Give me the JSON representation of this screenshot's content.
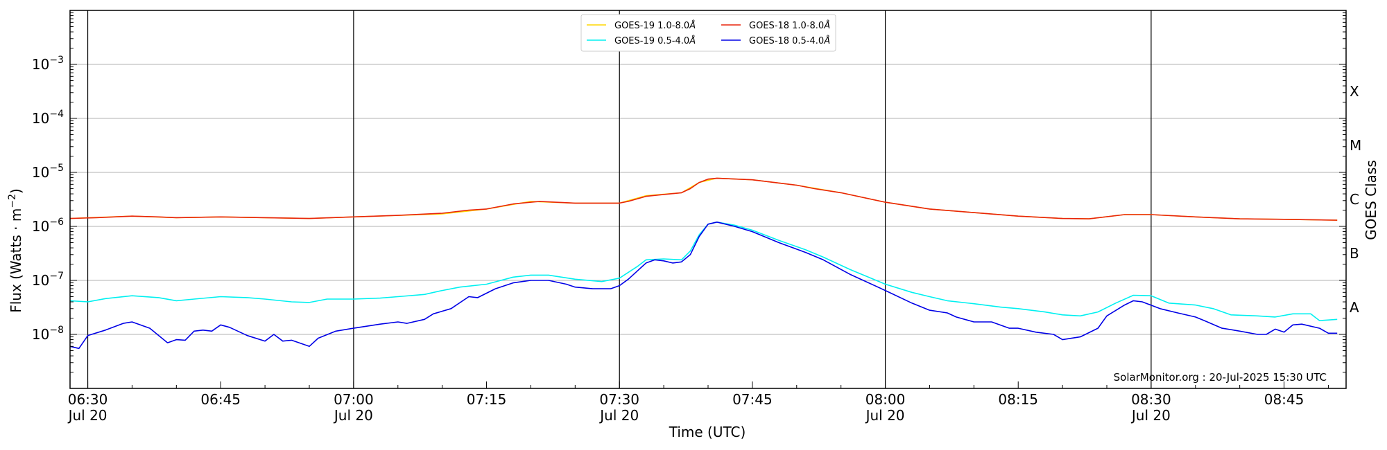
{
  "chart_data": {
    "type": "line",
    "xlabel": "Time (UTC)",
    "ylabel": "Flux (Watts · m",
    "ylabel_sup": "−2",
    "ylabel_close": ")",
    "y_scale": "log",
    "ylim": [
      1e-09,
      0.01
    ],
    "xlim": [
      "2025-07-20 06:28",
      "2025-07-20 08:52"
    ],
    "grid": "horizontal at each decade; vertical lines at half-hours",
    "y_ticks": [
      {
        "value": 1e-08,
        "base": "10",
        "exp": "−8"
      },
      {
        "value": 1e-07,
        "base": "10",
        "exp": "−7"
      },
      {
        "value": 1e-06,
        "base": "10",
        "exp": "−6"
      },
      {
        "value": 1e-05,
        "base": "10",
        "exp": "−5"
      },
      {
        "value": 0.0001,
        "base": "10",
        "exp": "−4"
      },
      {
        "value": 0.001,
        "base": "10",
        "exp": "−3"
      }
    ],
    "x_ticks": [
      {
        "time": "06:30",
        "line1": "06:30",
        "line2": "Jul 20"
      },
      {
        "time": "06:45",
        "line1": "06:45",
        "line2": ""
      },
      {
        "time": "07:00",
        "line1": "07:00",
        "line2": "Jul 20"
      },
      {
        "time": "07:15",
        "line1": "07:15",
        "line2": ""
      },
      {
        "time": "07:30",
        "line1": "07:30",
        "line2": "Jul 20"
      },
      {
        "time": "07:45",
        "line1": "07:45",
        "line2": ""
      },
      {
        "time": "08:00",
        "line1": "08:00",
        "line2": "Jul 20"
      },
      {
        "time": "08:15",
        "line1": "08:15",
        "line2": ""
      },
      {
        "time": "08:30",
        "line1": "08:30",
        "line2": "Jul 20"
      },
      {
        "time": "08:45",
        "line1": "08:45",
        "line2": ""
      }
    ],
    "vertical_lines": [
      "06:30",
      "07:00",
      "07:30",
      "08:00",
      "08:30"
    ],
    "right_axis": {
      "label": "GOES Class",
      "classes": [
        {
          "name": "A",
          "center": 3.16e-08
        },
        {
          "name": "B",
          "center": 3.16e-07
        },
        {
          "name": "C",
          "center": 3.16e-06
        },
        {
          "name": "M",
          "center": 3.16e-05
        },
        {
          "name": "X",
          "center": 0.000316
        }
      ]
    },
    "legend_position": "top-center",
    "credit": "SolarMonitor.org : 20-Jul-2025 15:30 UTC",
    "series": [
      {
        "name": "GOES-19 1.0-8.0",
        "color": "#ffd700",
        "points": [
          [
            "06:28",
            1.4e-06
          ],
          [
            "06:35",
            1.55e-06
          ],
          [
            "06:40",
            1.45e-06
          ],
          [
            "06:45",
            1.5e-06
          ],
          [
            "06:55",
            1.4e-06
          ],
          [
            "07:00",
            1.5e-06
          ],
          [
            "07:10",
            1.7e-06
          ],
          [
            "07:15",
            2.1e-06
          ],
          [
            "07:20",
            2.9e-06
          ],
          [
            "07:25",
            2.7e-06
          ],
          [
            "07:30",
            2.7e-06
          ],
          [
            "07:33",
            3.7e-06
          ],
          [
            "07:37",
            4.2e-06
          ],
          [
            "07:39",
            6.5e-06
          ],
          [
            "07:41",
            7.8e-06
          ],
          [
            "07:45",
            7.3e-06
          ],
          [
            "07:50",
            5.8e-06
          ],
          [
            "07:55",
            4.2e-06
          ],
          [
            "08:00",
            2.8e-06
          ],
          [
            "08:05",
            2.1e-06
          ],
          [
            "08:10",
            1.8e-06
          ],
          [
            "08:15",
            1.55e-06
          ],
          [
            "08:20",
            1.4e-06
          ],
          [
            "08:23",
            1.38e-06
          ],
          [
            "08:27",
            1.65e-06
          ],
          [
            "08:30",
            1.65e-06
          ],
          [
            "08:35",
            1.5e-06
          ],
          [
            "08:40",
            1.38e-06
          ],
          [
            "08:45",
            1.35e-06
          ],
          [
            "08:51",
            1.3e-06
          ]
        ]
      },
      {
        "name": "GOES-18 1.0-8.0",
        "color": "#e8240c",
        "points": [
          [
            "06:28",
            1.4e-06
          ],
          [
            "06:31",
            1.45e-06
          ],
          [
            "06:35",
            1.55e-06
          ],
          [
            "06:38",
            1.5e-06
          ],
          [
            "06:40",
            1.45e-06
          ],
          [
            "06:45",
            1.5e-06
          ],
          [
            "06:50",
            1.45e-06
          ],
          [
            "06:55",
            1.4e-06
          ],
          [
            "07:00",
            1.5e-06
          ],
          [
            "07:05",
            1.6e-06
          ],
          [
            "07:10",
            1.75e-06
          ],
          [
            "07:13",
            2e-06
          ],
          [
            "07:15",
            2.1e-06
          ],
          [
            "07:18",
            2.6e-06
          ],
          [
            "07:21",
            2.9e-06
          ],
          [
            "07:25",
            2.7e-06
          ],
          [
            "07:30",
            2.7e-06
          ],
          [
            "07:31",
            2.9e-06
          ],
          [
            "07:33",
            3.6e-06
          ],
          [
            "07:35",
            3.9e-06
          ],
          [
            "07:37",
            4.2e-06
          ],
          [
            "07:38",
            5e-06
          ],
          [
            "07:39",
            6.5e-06
          ],
          [
            "07:40",
            7.5e-06
          ],
          [
            "07:41",
            7.8e-06
          ],
          [
            "07:45",
            7.3e-06
          ],
          [
            "07:50",
            5.8e-06
          ],
          [
            "07:52",
            5e-06
          ],
          [
            "07:55",
            4.2e-06
          ],
          [
            "08:00",
            2.8e-06
          ],
          [
            "08:05",
            2.1e-06
          ],
          [
            "08:10",
            1.8e-06
          ],
          [
            "08:15",
            1.55e-06
          ],
          [
            "08:20",
            1.4e-06
          ],
          [
            "08:23",
            1.38e-06
          ],
          [
            "08:27",
            1.65e-06
          ],
          [
            "08:30",
            1.65e-06
          ],
          [
            "08:35",
            1.5e-06
          ],
          [
            "08:40",
            1.38e-06
          ],
          [
            "08:45",
            1.35e-06
          ],
          [
            "08:51",
            1.3e-06
          ]
        ]
      },
      {
        "name": "GOES-19 0.5-4.0",
        "color": "#00f0f0",
        "points": [
          [
            "06:28",
            4.2e-08
          ],
          [
            "06:30",
            4e-08
          ],
          [
            "06:32",
            4.6e-08
          ],
          [
            "06:35",
            5.2e-08
          ],
          [
            "06:38",
            4.8e-08
          ],
          [
            "06:40",
            4.2e-08
          ],
          [
            "06:42",
            4.5e-08
          ],
          [
            "06:45",
            5e-08
          ],
          [
            "06:48",
            4.8e-08
          ],
          [
            "06:50",
            4.5e-08
          ],
          [
            "06:53",
            4e-08
          ],
          [
            "06:55",
            3.9e-08
          ],
          [
            "06:57",
            4.5e-08
          ],
          [
            "07:00",
            4.5e-08
          ],
          [
            "07:03",
            4.7e-08
          ],
          [
            "07:05",
            5e-08
          ],
          [
            "07:08",
            5.5e-08
          ],
          [
            "07:10",
            6.5e-08
          ],
          [
            "07:12",
            7.5e-08
          ],
          [
            "07:15",
            8.5e-08
          ],
          [
            "07:18",
            1.15e-07
          ],
          [
            "07:20",
            1.25e-07
          ],
          [
            "07:22",
            1.25e-07
          ],
          [
            "07:25",
            1.05e-07
          ],
          [
            "07:28",
            9.5e-08
          ],
          [
            "07:30",
            1.1e-07
          ],
          [
            "07:32",
            1.8e-07
          ],
          [
            "07:33",
            2.4e-07
          ],
          [
            "07:35",
            2.5e-07
          ],
          [
            "07:37",
            2.4e-07
          ],
          [
            "07:38",
            3.5e-07
          ],
          [
            "07:39",
            7e-07
          ],
          [
            "07:40",
            1.1e-06
          ],
          [
            "07:41",
            1.2e-06
          ],
          [
            "07:43",
            1.05e-06
          ],
          [
            "07:45",
            8.5e-07
          ],
          [
            "07:48",
            5.5e-07
          ],
          [
            "07:51",
            3.7e-07
          ],
          [
            "07:53",
            2.7e-07
          ],
          [
            "07:56",
            1.6e-07
          ],
          [
            "08:00",
            8.5e-08
          ],
          [
            "08:03",
            6e-08
          ],
          [
            "08:05",
            5e-08
          ],
          [
            "08:07",
            4.2e-08
          ],
          [
            "08:10",
            3.7e-08
          ],
          [
            "08:13",
            3.2e-08
          ],
          [
            "08:15",
            3e-08
          ],
          [
            "08:18",
            2.6e-08
          ],
          [
            "08:20",
            2.3e-08
          ],
          [
            "08:22",
            2.2e-08
          ],
          [
            "08:24",
            2.6e-08
          ],
          [
            "08:26",
            3.8e-08
          ],
          [
            "08:28",
            5.3e-08
          ],
          [
            "08:30",
            5.2e-08
          ],
          [
            "08:32",
            3.8e-08
          ],
          [
            "08:35",
            3.5e-08
          ],
          [
            "08:37",
            3e-08
          ],
          [
            "08:39",
            2.3e-08
          ],
          [
            "08:42",
            2.2e-08
          ],
          [
            "08:44",
            2.1e-08
          ],
          [
            "08:46",
            2.4e-08
          ],
          [
            "08:48",
            2.4e-08
          ],
          [
            "08:49",
            1.8e-08
          ],
          [
            "08:51",
            1.9e-08
          ]
        ]
      },
      {
        "name": "GOES-18 0.5-4.0",
        "color": "#0000e6",
        "points": [
          [
            "06:28",
            6e-09
          ],
          [
            "06:29",
            5.5e-09
          ],
          [
            "06:30",
            9.5e-09
          ],
          [
            "06:32",
            1.2e-08
          ],
          [
            "06:34",
            1.6e-08
          ],
          [
            "06:35",
            1.7e-08
          ],
          [
            "06:37",
            1.3e-08
          ],
          [
            "06:39",
            7e-09
          ],
          [
            "06:40",
            8e-09
          ],
          [
            "06:41",
            7.8e-09
          ],
          [
            "06:42",
            1.15e-08
          ],
          [
            "06:43",
            1.2e-08
          ],
          [
            "06:44",
            1.15e-08
          ],
          [
            "06:45",
            1.5e-08
          ],
          [
            "06:46",
            1.35e-08
          ],
          [
            "06:48",
            9.5e-09
          ],
          [
            "06:50",
            7.5e-09
          ],
          [
            "06:51",
            1e-08
          ],
          [
            "06:52",
            7.5e-09
          ],
          [
            "06:53",
            7.8e-09
          ],
          [
            "06:55",
            6e-09
          ],
          [
            "06:56",
            8.5e-09
          ],
          [
            "06:58",
            1.15e-08
          ],
          [
            "07:00",
            1.3e-08
          ],
          [
            "07:03",
            1.55e-08
          ],
          [
            "07:05",
            1.7e-08
          ],
          [
            "07:06",
            1.6e-08
          ],
          [
            "07:08",
            1.9e-08
          ],
          [
            "07:09",
            2.4e-08
          ],
          [
            "07:11",
            3e-08
          ],
          [
            "07:13",
            5e-08
          ],
          [
            "07:14",
            4.8e-08
          ],
          [
            "07:16",
            7e-08
          ],
          [
            "07:18",
            9e-08
          ],
          [
            "07:20",
            1e-07
          ],
          [
            "07:22",
            1e-07
          ],
          [
            "07:24",
            8.5e-08
          ],
          [
            "07:25",
            7.5e-08
          ],
          [
            "07:27",
            7e-08
          ],
          [
            "07:29",
            7e-08
          ],
          [
            "07:30",
            8e-08
          ],
          [
            "07:31",
            1.05e-07
          ],
          [
            "07:33",
            2.1e-07
          ],
          [
            "07:34",
            2.4e-07
          ],
          [
            "07:35",
            2.3e-07
          ],
          [
            "07:36",
            2.1e-07
          ],
          [
            "07:37",
            2.2e-07
          ],
          [
            "07:38",
            3e-07
          ],
          [
            "07:39",
            6.5e-07
          ],
          [
            "07:40",
            1.1e-06
          ],
          [
            "07:41",
            1.2e-06
          ],
          [
            "07:43",
            1e-06
          ],
          [
            "07:45",
            8e-07
          ],
          [
            "07:48",
            5e-07
          ],
          [
            "07:51",
            3.3e-07
          ],
          [
            "07:53",
            2.4e-07
          ],
          [
            "07:56",
            1.3e-07
          ],
          [
            "08:00",
            6.5e-08
          ],
          [
            "08:03",
            3.8e-08
          ],
          [
            "08:05",
            2.8e-08
          ],
          [
            "08:07",
            2.5e-08
          ],
          [
            "08:08",
            2.1e-08
          ],
          [
            "08:10",
            1.7e-08
          ],
          [
            "08:12",
            1.7e-08
          ],
          [
            "08:14",
            1.3e-08
          ],
          [
            "08:15",
            1.3e-08
          ],
          [
            "08:17",
            1.1e-08
          ],
          [
            "08:19",
            1e-08
          ],
          [
            "08:20",
            8e-09
          ],
          [
            "08:22",
            9e-09
          ],
          [
            "08:24",
            1.3e-08
          ],
          [
            "08:25",
            2.2e-08
          ],
          [
            "08:27",
            3.5e-08
          ],
          [
            "08:28",
            4.2e-08
          ],
          [
            "08:29",
            4e-08
          ],
          [
            "08:31",
            3e-08
          ],
          [
            "08:33",
            2.5e-08
          ],
          [
            "08:35",
            2.1e-08
          ],
          [
            "08:36",
            1.8e-08
          ],
          [
            "08:38",
            1.3e-08
          ],
          [
            "08:40",
            1.15e-08
          ],
          [
            "08:42",
            1e-08
          ],
          [
            "08:43",
            1e-08
          ],
          [
            "08:44",
            1.25e-08
          ],
          [
            "08:45",
            1.1e-08
          ],
          [
            "08:46",
            1.5e-08
          ],
          [
            "08:47",
            1.55e-08
          ],
          [
            "08:49",
            1.3e-08
          ],
          [
            "08:50",
            1.05e-08
          ],
          [
            "08:51",
            1.05e-08
          ]
        ]
      }
    ]
  }
}
